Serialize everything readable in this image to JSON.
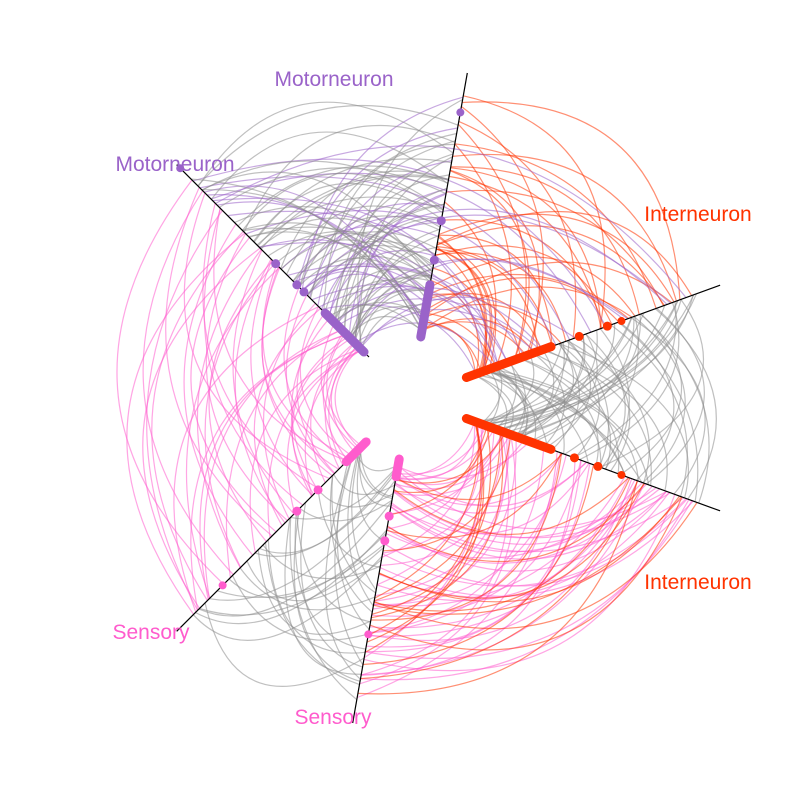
{
  "colors": {
    "motorneuron": "#9a63c9",
    "interneuron": "#ff3300",
    "sensory": "#ff5ccd",
    "between": "#8c8c8c",
    "axis": "#000000"
  },
  "axes": [
    {
      "id": "motor_a",
      "label": "Motorneuron",
      "class": "motorneuron",
      "angle_deg": 280
    },
    {
      "id": "motor_b",
      "label": "Motorneuron",
      "class": "motorneuron",
      "angle_deg": 225
    },
    {
      "id": "inter_a",
      "label": "Interneuron",
      "class": "interneuron",
      "angle_deg": 340
    },
    {
      "id": "inter_b",
      "label": "Interneuron",
      "class": "interneuron",
      "angle_deg": 20
    },
    {
      "id": "sens_a",
      "label": "Sensory",
      "class": "sensory",
      "angle_deg": 135
    },
    {
      "id": "sens_b",
      "label": "Sensory",
      "class": "sensory",
      "angle_deg": 100
    }
  ],
  "edge_groups": [
    {
      "from": "motor_a",
      "to": "motor_b",
      "color": "motorneuron",
      "count": 18
    },
    {
      "from": "motor_a",
      "to": "inter_a",
      "color": "interneuron",
      "count": 45
    },
    {
      "from": "motor_b",
      "to": "inter_a",
      "color": "motorneuron",
      "count": 22
    },
    {
      "from": "motor_b",
      "to": "sens_a",
      "color": "sensory",
      "count": 30
    },
    {
      "from": "motor_b",
      "to": "motor_a",
      "color": "between",
      "count": 60
    },
    {
      "from": "inter_a",
      "to": "inter_b",
      "color": "between",
      "count": 70
    },
    {
      "from": "sens_a",
      "to": "sens_b",
      "color": "between",
      "count": 40
    },
    {
      "from": "sens_b",
      "to": "inter_b",
      "color": "sensory",
      "count": 55
    },
    {
      "from": "inter_b",
      "to": "sens_b",
      "color": "interneuron",
      "count": 25
    },
    {
      "from": "sens_a",
      "to": "motor_b",
      "color": "sensory",
      "count": 20
    }
  ]
}
